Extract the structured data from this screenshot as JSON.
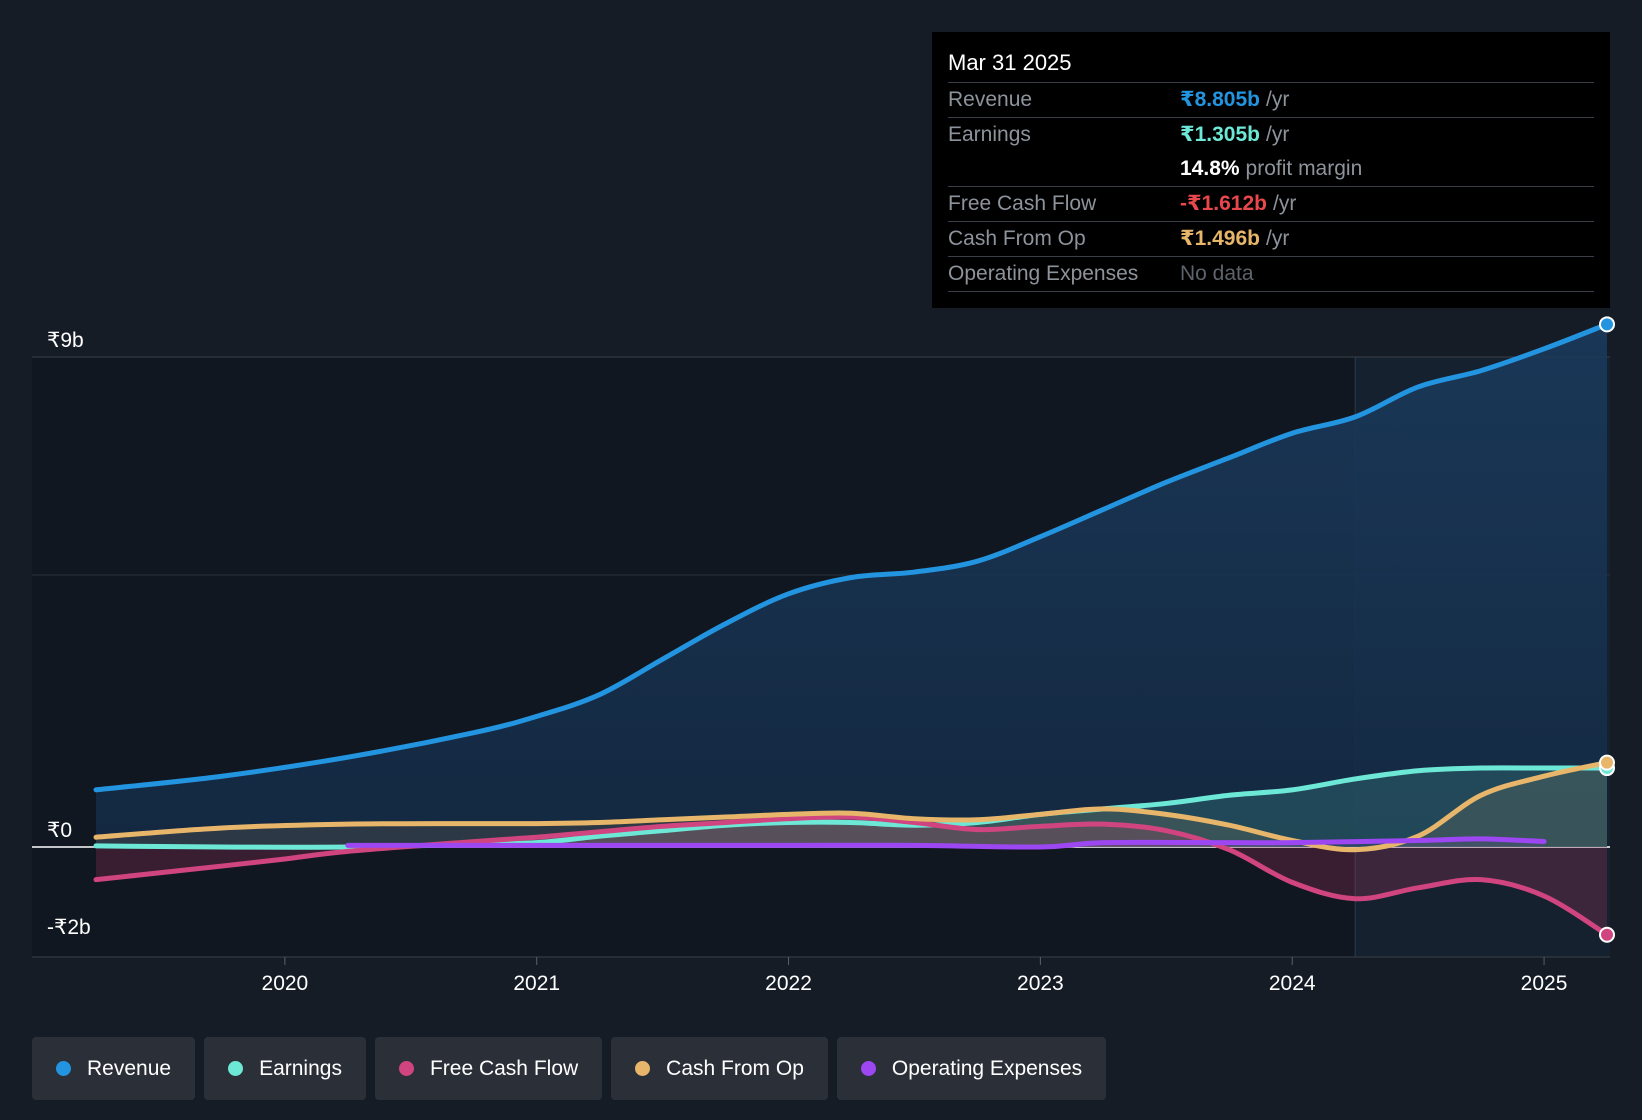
{
  "chart_data": {
    "type": "line",
    "title": "",
    "xlabel": "",
    "ylabel": "",
    "ylim": [
      -2,
      9
    ],
    "y_tick_labels": [
      "₹9b",
      "₹0",
      "-₹2b"
    ],
    "x_tick_labels": [
      "2020",
      "2021",
      "2022",
      "2023",
      "2024",
      "2025"
    ],
    "x_range": [
      2019.25,
      2025.25
    ],
    "forecast_start": 2024.25,
    "series": [
      {
        "name": "Revenue",
        "color": "#2394df",
        "x": [
          2019.25,
          2019.75,
          2020.25,
          2020.75,
          2021.0,
          2021.25,
          2021.5,
          2021.75,
          2022.0,
          2022.25,
          2022.5,
          2022.75,
          2023.0,
          2023.25,
          2023.5,
          2023.75,
          2024.0,
          2024.25,
          2024.5,
          2024.75,
          2025.0,
          2025.25
        ],
        "values": [
          1.05,
          1.3,
          1.65,
          2.1,
          2.4,
          2.8,
          3.45,
          4.1,
          4.65,
          4.95,
          5.05,
          5.25,
          5.7,
          6.2,
          6.7,
          7.15,
          7.6,
          7.9,
          8.45,
          8.75,
          9.15,
          9.6
        ]
      },
      {
        "name": "Earnings",
        "color": "#6de8d6",
        "x": [
          2019.25,
          2019.75,
          2020.25,
          2020.75,
          2021.0,
          2021.25,
          2021.5,
          2021.75,
          2022.0,
          2022.25,
          2022.5,
          2022.75,
          2023.0,
          2023.25,
          2023.5,
          2023.75,
          2024.0,
          2024.25,
          2024.5,
          2024.75,
          2025.0,
          2025.25
        ],
        "values": [
          0.02,
          0.0,
          0.0,
          0.05,
          0.08,
          0.2,
          0.3,
          0.4,
          0.45,
          0.45,
          0.4,
          0.45,
          0.6,
          0.7,
          0.8,
          0.95,
          1.05,
          1.25,
          1.4,
          1.45,
          1.45,
          1.45
        ]
      },
      {
        "name": "Free Cash Flow",
        "color": "#d0457f",
        "x": [
          2019.25,
          2019.75,
          2020.0,
          2020.25,
          2020.75,
          2021.0,
          2021.25,
          2021.5,
          2021.75,
          2022.0,
          2022.25,
          2022.5,
          2022.75,
          2023.0,
          2023.25,
          2023.5,
          2023.75,
          2024.0,
          2024.25,
          2024.5,
          2024.75,
          2025.0,
          2025.25
        ],
        "values": [
          -0.6,
          -0.35,
          -0.22,
          -0.08,
          0.1,
          0.18,
          0.28,
          0.38,
          0.45,
          0.52,
          0.55,
          0.45,
          0.32,
          0.38,
          0.42,
          0.3,
          -0.05,
          -0.65,
          -0.95,
          -0.75,
          -0.6,
          -0.9,
          -1.612
        ]
      },
      {
        "name": "Cash From Op",
        "color": "#e7b66a",
        "x": [
          2019.25,
          2019.75,
          2020.25,
          2020.75,
          2021.0,
          2021.25,
          2021.5,
          2021.75,
          2022.0,
          2022.25,
          2022.5,
          2022.75,
          2023.0,
          2023.25,
          2023.5,
          2023.75,
          2024.0,
          2024.25,
          2024.5,
          2024.75,
          2025.0,
          2025.25
        ],
        "values": [
          0.18,
          0.35,
          0.42,
          0.43,
          0.43,
          0.45,
          0.5,
          0.55,
          0.6,
          0.62,
          0.52,
          0.5,
          0.6,
          0.7,
          0.6,
          0.4,
          0.12,
          -0.05,
          0.2,
          0.95,
          1.3,
          1.55
        ]
      },
      {
        "name": "Operating Expenses",
        "color": "#9c47f2",
        "x": [
          2020.25,
          2021.0,
          2021.5,
          2022.0,
          2022.5,
          2023.0,
          2023.25,
          2023.75,
          2024.0,
          2024.5,
          2024.75,
          2025.0
        ],
        "values": [
          0.03,
          0.03,
          0.03,
          0.03,
          0.03,
          0.0,
          0.08,
          0.08,
          0.08,
          0.12,
          0.15,
          0.1
        ]
      }
    ]
  },
  "tooltip": {
    "date": "Mar 31 2025",
    "rows": [
      {
        "label": "Revenue",
        "value": "₹8.805b",
        "unit": "/yr",
        "color": "#2394df"
      },
      {
        "label": "Earnings",
        "value": "₹1.305b",
        "unit": "/yr",
        "color": "#6de8d6"
      },
      {
        "label": "",
        "value": "14.8%",
        "unit": "profit margin",
        "color": "#ffffff"
      },
      {
        "label": "Free Cash Flow",
        "value": "-₹1.612b",
        "unit": "/yr",
        "color": "#e8474c"
      },
      {
        "label": "Cash From Op",
        "value": "₹1.496b",
        "unit": "/yr",
        "color": "#e7b66a"
      },
      {
        "label": "Operating Expenses",
        "value": "No data",
        "unit": "",
        "color": "#5d636b"
      }
    ]
  },
  "legend": [
    {
      "label": "Revenue",
      "color": "#2394df"
    },
    {
      "label": "Earnings",
      "color": "#6de8d6"
    },
    {
      "label": "Free Cash Flow",
      "color": "#d0457f"
    },
    {
      "label": "Cash From Op",
      "color": "#e7b66a"
    },
    {
      "label": "Operating Expenses",
      "color": "#9c47f2"
    }
  ]
}
